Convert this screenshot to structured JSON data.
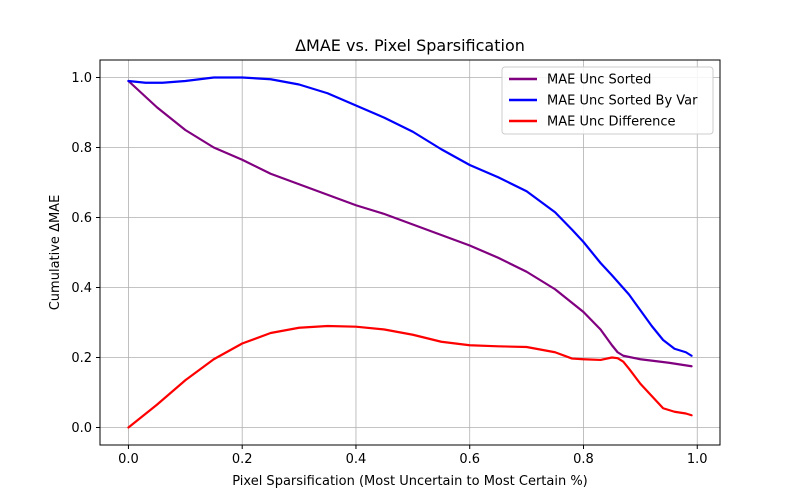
{
  "chart_data": {
    "type": "line",
    "title": "ΔMAE vs. Pixel Sparsification",
    "xlabel": "Pixel Sparsification (Most Uncertain to Most Certain %)",
    "ylabel": "Cumulative ΔMAE",
    "xlim": [
      -0.05,
      1.04
    ],
    "ylim": [
      -0.05,
      1.05
    ],
    "xticks": [
      0.0,
      0.2,
      0.4,
      0.6,
      0.8,
      1.0
    ],
    "xtick_labels": [
      "0.0",
      "0.2",
      "0.4",
      "0.6",
      "0.8",
      "1.0"
    ],
    "yticks": [
      0.0,
      0.2,
      0.4,
      0.6,
      0.8,
      1.0
    ],
    "ytick_labels": [
      "0.0",
      "0.2",
      "0.4",
      "0.6",
      "0.8",
      "1.0"
    ],
    "grid": true,
    "legend_position": "top-right",
    "series": [
      {
        "name": "MAE Unc Sorted",
        "color": "#800080",
        "x": [
          0.0,
          0.05,
          0.1,
          0.15,
          0.2,
          0.25,
          0.3,
          0.35,
          0.4,
          0.45,
          0.5,
          0.55,
          0.6,
          0.65,
          0.7,
          0.75,
          0.8,
          0.83,
          0.85,
          0.86,
          0.87,
          0.9,
          0.95,
          0.99
        ],
        "y": [
          0.99,
          0.915,
          0.85,
          0.8,
          0.765,
          0.725,
          0.695,
          0.665,
          0.635,
          0.61,
          0.58,
          0.55,
          0.52,
          0.485,
          0.445,
          0.395,
          0.33,
          0.28,
          0.235,
          0.215,
          0.205,
          0.195,
          0.185,
          0.175
        ]
      },
      {
        "name": "MAE Unc Sorted By Var",
        "color": "#0000ff",
        "x": [
          0.0,
          0.03,
          0.06,
          0.1,
          0.15,
          0.2,
          0.25,
          0.3,
          0.35,
          0.4,
          0.45,
          0.5,
          0.55,
          0.6,
          0.65,
          0.7,
          0.75,
          0.78,
          0.8,
          0.83,
          0.85,
          0.88,
          0.9,
          0.92,
          0.94,
          0.96,
          0.98,
          0.99
        ],
        "y": [
          0.99,
          0.985,
          0.985,
          0.99,
          1.0,
          1.0,
          0.995,
          0.98,
          0.955,
          0.92,
          0.885,
          0.845,
          0.795,
          0.75,
          0.715,
          0.675,
          0.615,
          0.565,
          0.53,
          0.47,
          0.435,
          0.38,
          0.335,
          0.29,
          0.25,
          0.225,
          0.215,
          0.205
        ]
      },
      {
        "name": "MAE Unc Difference",
        "color": "#ff0000",
        "x": [
          0.0,
          0.05,
          0.1,
          0.15,
          0.2,
          0.25,
          0.3,
          0.35,
          0.4,
          0.45,
          0.5,
          0.55,
          0.6,
          0.65,
          0.7,
          0.75,
          0.78,
          0.8,
          0.83,
          0.85,
          0.86,
          0.87,
          0.88,
          0.9,
          0.92,
          0.94,
          0.96,
          0.98,
          0.99
        ],
        "y": [
          0.0,
          0.065,
          0.135,
          0.195,
          0.24,
          0.27,
          0.285,
          0.29,
          0.288,
          0.28,
          0.265,
          0.245,
          0.235,
          0.232,
          0.23,
          0.215,
          0.197,
          0.195,
          0.193,
          0.2,
          0.198,
          0.188,
          0.168,
          0.125,
          0.09,
          0.055,
          0.045,
          0.04,
          0.035
        ]
      }
    ]
  }
}
